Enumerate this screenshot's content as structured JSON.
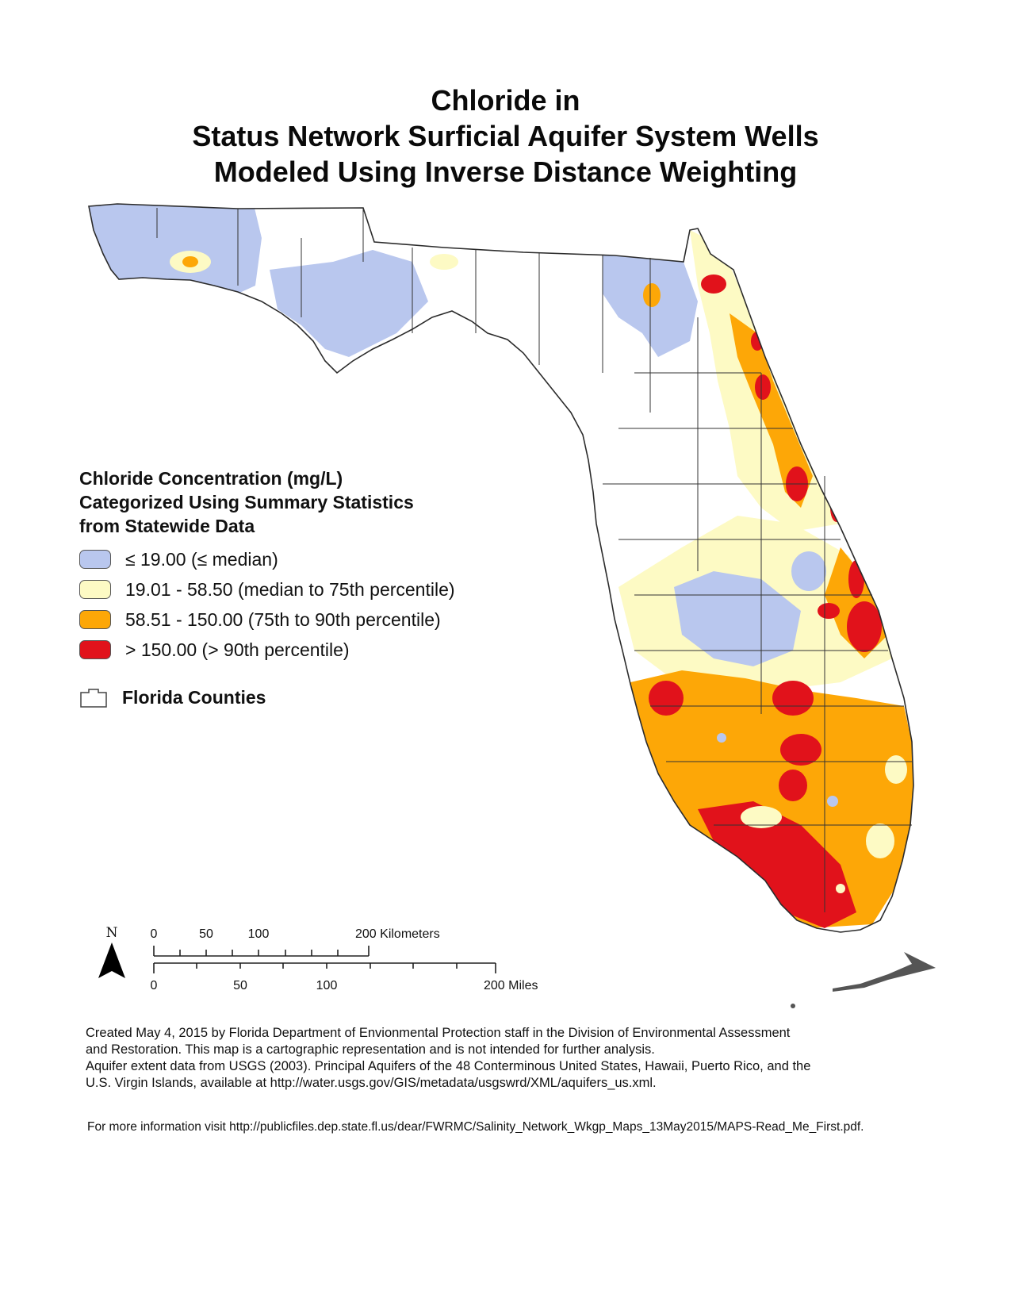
{
  "title": {
    "line1": "Chloride in",
    "line2": "Status Network Surficial Aquifer System Wells",
    "line3": "Modeled Using Inverse Distance Weighting"
  },
  "legend": {
    "title_line1": "Chloride Concentration (mg/L)",
    "title_line2": "Categorized Using Summary Statistics",
    "title_line3": "from Statewide Data",
    "items": [
      {
        "label": "≤ 19.00 (≤ median)",
        "color": "#b9c7ee"
      },
      {
        "label": "19.01 - 58.50 (median to 75th percentile)",
        "color": "#fdfac4"
      },
      {
        "label": "58.51 - 150.00 (75th to 90th percentile)",
        "color": "#fda707"
      },
      {
        "label": "> 150.00 (> 90th percentile)",
        "color": "#e1121b"
      }
    ],
    "counties_label": "Florida Counties",
    "counties_color": "#ffffff"
  },
  "scale": {
    "north_label": "N",
    "km_labels": [
      "0",
      "50",
      "100",
      "200 Kilometers"
    ],
    "mile_labels": [
      "0",
      "50",
      "100",
      "200 Miles"
    ]
  },
  "footnote": {
    "line1": "Created May 4, 2015 by Florida Department of Envionmental Protection staff in the Division of Environmental Assessment",
    "line2": "and Restoration.  This map is a cartographic representation and is not intended for further analysis.",
    "line3": "Aquifer extent data from USGS (2003). Principal Aquifers of the 48 Conterminous United States, Hawaii, Puerto Rico, and the",
    "line4": "U.S. Virgin Islands, available at http://water.usgs.gov/GIS/metadata/usgswrd/XML/aquifers_us.xml."
  },
  "more_info": "For more information visit http://publicfiles.dep.state.fl.us/dear/FWRMC/Salinity_Network_Wkgp_Maps_13May2015/MAPS-Read_Me_First.pdf.",
  "colors": {
    "low": "#b9c7ee",
    "mid": "#fdfac4",
    "high": "#fda707",
    "very_high": "#e1121b",
    "county_line": "#333333",
    "land": "#ffffff"
  }
}
